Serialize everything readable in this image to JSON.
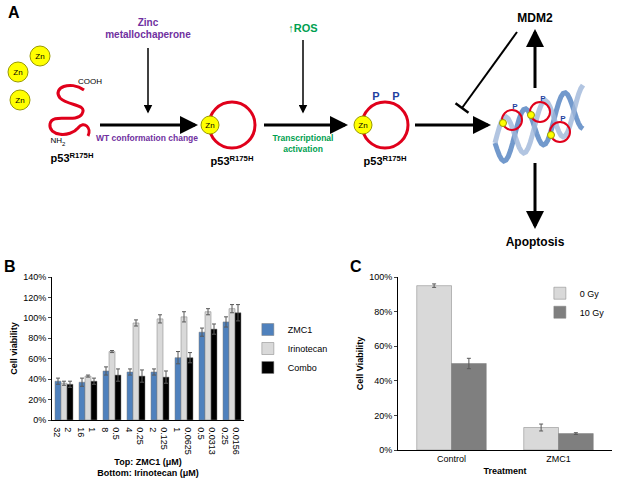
{
  "diagram": {
    "panel_label": "A",
    "free_zinc": [
      "Zn",
      "Zn",
      "Zn"
    ],
    "termini": {
      "c": "COOH",
      "n": {
        "main": "NH",
        "sub": "2"
      }
    },
    "protein_labels": [
      {
        "main": "p53",
        "sup": "R175H"
      },
      {
        "main": "p53",
        "sup": "R175H"
      },
      {
        "main": "p53",
        "sup": "R175H"
      }
    ],
    "steps": [
      {
        "top": [
          "Zinc",
          "metallochaperone"
        ],
        "bottom": [
          "WT conformation change"
        ],
        "color": "#7030a0"
      },
      {
        "top": [
          "↑ROS"
        ],
        "bottom": [
          "Transcriptional",
          "activation"
        ],
        "color": "#00a050"
      }
    ],
    "bound_zinc": "Zn",
    "phospho": "P",
    "regulator": "MDM2",
    "outcome": "Apoptosis"
  },
  "panel_labels": [
    "B",
    "C"
  ],
  "chart_data": [
    {
      "type": "bar",
      "categories": [
        [
          "2",
          "32"
        ],
        [
          "1",
          "16"
        ],
        [
          "0.5",
          "8"
        ],
        [
          "0.25",
          "4"
        ],
        [
          "0.125",
          "2"
        ],
        [
          "0.0625",
          "1"
        ],
        [
          "0.0313",
          "0.5"
        ],
        [
          "0.0156",
          "0.25"
        ]
      ],
      "x_label": [
        "Top: ZMC1 (μM)",
        "Bottom: Irinotecan (μM)"
      ],
      "y_label": "Cell viability",
      "series": [
        {
          "name": "ZMC1",
          "color": "#4f81bd",
          "values": [
            38,
            37,
            48,
            47,
            47,
            61,
            86,
            96
          ],
          "errors": [
            3,
            4,
            4,
            3,
            3,
            6,
            4,
            5
          ]
        },
        {
          "name": "Irinotecan",
          "color": "#d9d9d9",
          "values": [
            36,
            43,
            67,
            95,
            99,
            101,
            106,
            109
          ],
          "errors": [
            2,
            1,
            1,
            3,
            4,
            5,
            3,
            4
          ]
        },
        {
          "name": "Combo",
          "color": "#000000",
          "values": [
            35,
            38,
            44,
            43,
            42,
            61,
            89,
            105
          ],
          "errors": [
            3,
            3,
            6,
            6,
            6,
            5,
            5,
            8
          ]
        }
      ],
      "ylim": [
        0,
        140
      ],
      "yticks": [
        {
          "value": 0,
          "label": "0%"
        },
        {
          "value": 20,
          "label": "20%"
        },
        {
          "value": 40,
          "label": "40%"
        },
        {
          "value": 60,
          "label": "60%"
        },
        {
          "value": 80,
          "label": "80%"
        },
        {
          "value": 100,
          "label": "100%"
        },
        {
          "value": 120,
          "label": "120%"
        },
        {
          "value": 140,
          "label": "140%"
        }
      ],
      "grid": false,
      "legend": "right"
    },
    {
      "type": "bar",
      "categories": [
        "Control",
        "ZMC1"
      ],
      "x_label": [
        "Treatment"
      ],
      "y_label": "Cell Viability",
      "series": [
        {
          "name": "0 Gy",
          "color": "#d9d9d9",
          "values": [
            95,
            13
          ],
          "errors": [
            1,
            2
          ]
        },
        {
          "name": "10 Gy",
          "color": "#7f7f7f",
          "values": [
            50,
            9.5
          ],
          "errors": [
            3,
            0.5
          ]
        }
      ],
      "ylim": [
        0,
        100
      ],
      "yticks": [
        {
          "value": 0,
          "label": "0%"
        },
        {
          "value": 20,
          "label": "20%"
        },
        {
          "value": 40,
          "label": "40%"
        },
        {
          "value": 60,
          "label": "60%"
        },
        {
          "value": 80,
          "label": "80%"
        },
        {
          "value": 100,
          "label": "100%"
        }
      ],
      "grid": false,
      "legend": "top right"
    }
  ]
}
